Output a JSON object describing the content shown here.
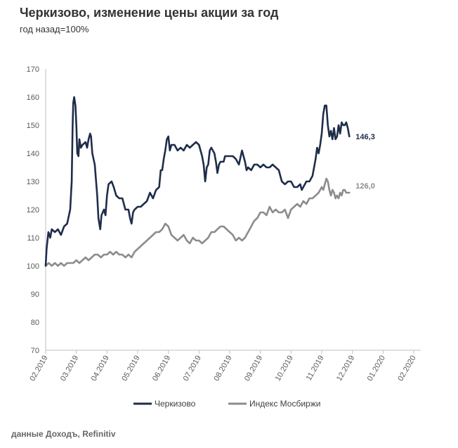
{
  "header": {
    "title": "Черкизово, изменение цены акции за год",
    "subtitle": "год назад=100%"
  },
  "footer": {
    "source": "данные Доходъ, Refinitiv"
  },
  "chart_data": {
    "type": "line",
    "ylim": [
      70,
      170
    ],
    "y_ticks": [
      70,
      80,
      90,
      100,
      110,
      120,
      130,
      140,
      150,
      160,
      170
    ],
    "x_range": [
      0,
      12
    ],
    "x_ticks": [
      {
        "x": 0,
        "label": "02.2019"
      },
      {
        "x": 1,
        "label": "03.2019"
      },
      {
        "x": 2,
        "label": "04.2019"
      },
      {
        "x": 3,
        "label": "05.2019"
      },
      {
        "x": 4,
        "label": "06.2019"
      },
      {
        "x": 5,
        "label": "07.2019"
      },
      {
        "x": 6,
        "label": "08.2019"
      },
      {
        "x": 7,
        "label": "09.2019"
      },
      {
        "x": 8,
        "label": "10.2019"
      },
      {
        "x": 9,
        "label": "11.2019"
      },
      {
        "x": 10,
        "label": "12.2019"
      },
      {
        "x": 11,
        "label": "01.2020"
      },
      {
        "x": 12,
        "label": "02.2020"
      }
    ],
    "grid": false,
    "legend_position": "bottom",
    "series": [
      {
        "name": "Черкизово",
        "color": "#1f2d4a",
        "end_label": "146,3",
        "points": [
          [
            0.0,
            100
          ],
          [
            0.03,
            106
          ],
          [
            0.09,
            112
          ],
          [
            0.15,
            110
          ],
          [
            0.2,
            113
          ],
          [
            0.3,
            112
          ],
          [
            0.4,
            113
          ],
          [
            0.5,
            111
          ],
          [
            0.6,
            114
          ],
          [
            0.7,
            115
          ],
          [
            0.8,
            120
          ],
          [
            0.85,
            130
          ],
          [
            0.88,
            150
          ],
          [
            0.9,
            158
          ],
          [
            0.93,
            160
          ],
          [
            0.97,
            157
          ],
          [
            1.0,
            150
          ],
          [
            1.03,
            140
          ],
          [
            1.07,
            139
          ],
          [
            1.1,
            145
          ],
          [
            1.15,
            142
          ],
          [
            1.2,
            143
          ],
          [
            1.3,
            144
          ],
          [
            1.35,
            142
          ],
          [
            1.4,
            145
          ],
          [
            1.45,
            147
          ],
          [
            1.48,
            146
          ],
          [
            1.52,
            140
          ],
          [
            1.6,
            136
          ],
          [
            1.68,
            125
          ],
          [
            1.72,
            117
          ],
          [
            1.78,
            113
          ],
          [
            1.82,
            118
          ],
          [
            1.9,
            120
          ],
          [
            1.95,
            118
          ],
          [
            2.0,
            125
          ],
          [
            2.05,
            129
          ],
          [
            2.15,
            130
          ],
          [
            2.22,
            128
          ],
          [
            2.3,
            125
          ],
          [
            2.4,
            124
          ],
          [
            2.5,
            124
          ],
          [
            2.6,
            120
          ],
          [
            2.7,
            120
          ],
          [
            2.75,
            117
          ],
          [
            2.8,
            115
          ],
          [
            2.85,
            119
          ],
          [
            2.9,
            120
          ],
          [
            3.0,
            121
          ],
          [
            3.1,
            121
          ],
          [
            3.2,
            122
          ],
          [
            3.3,
            123
          ],
          [
            3.4,
            126
          ],
          [
            3.5,
            124
          ],
          [
            3.6,
            127
          ],
          [
            3.7,
            128
          ],
          [
            3.75,
            134
          ],
          [
            3.8,
            134
          ],
          [
            3.85,
            138
          ],
          [
            3.9,
            141
          ],
          [
            3.95,
            145
          ],
          [
            4.0,
            146
          ],
          [
            4.05,
            141
          ],
          [
            4.1,
            143
          ],
          [
            4.2,
            143
          ],
          [
            4.3,
            141
          ],
          [
            4.4,
            142
          ],
          [
            4.5,
            141
          ],
          [
            4.6,
            143
          ],
          [
            4.7,
            142
          ],
          [
            4.8,
            143
          ],
          [
            4.9,
            144
          ],
          [
            5.0,
            143
          ],
          [
            5.05,
            141
          ],
          [
            5.1,
            139
          ],
          [
            5.15,
            136
          ],
          [
            5.2,
            130
          ],
          [
            5.25,
            135
          ],
          [
            5.3,
            136
          ],
          [
            5.35,
            141
          ],
          [
            5.4,
            142
          ],
          [
            5.5,
            140
          ],
          [
            5.55,
            137
          ],
          [
            5.6,
            133
          ],
          [
            5.65,
            136
          ],
          [
            5.7,
            137
          ],
          [
            5.8,
            137
          ],
          [
            5.85,
            139
          ],
          [
            5.9,
            139
          ],
          [
            6.0,
            139
          ],
          [
            6.1,
            139
          ],
          [
            6.2,
            138
          ],
          [
            6.3,
            136
          ],
          [
            6.4,
            141
          ],
          [
            6.5,
            137
          ],
          [
            6.55,
            134
          ],
          [
            6.6,
            135
          ],
          [
            6.7,
            134
          ],
          [
            6.8,
            136
          ],
          [
            6.9,
            136
          ],
          [
            7.0,
            135
          ],
          [
            7.1,
            136
          ],
          [
            7.2,
            135
          ],
          [
            7.3,
            135
          ],
          [
            7.4,
            136
          ],
          [
            7.5,
            135
          ],
          [
            7.6,
            134
          ],
          [
            7.7,
            130
          ],
          [
            7.8,
            129
          ],
          [
            7.9,
            130
          ],
          [
            8.0,
            130
          ],
          [
            8.1,
            128
          ],
          [
            8.2,
            128
          ],
          [
            8.3,
            129
          ],
          [
            8.35,
            127
          ],
          [
            8.4,
            128
          ],
          [
            8.5,
            130
          ],
          [
            8.6,
            130
          ],
          [
            8.7,
            132
          ],
          [
            8.8,
            138
          ],
          [
            8.85,
            142
          ],
          [
            8.9,
            140
          ],
          [
            8.95,
            143
          ],
          [
            9.0,
            147
          ],
          [
            9.05,
            154
          ],
          [
            9.1,
            157
          ],
          [
            9.15,
            157
          ],
          [
            9.2,
            150
          ],
          [
            9.25,
            146
          ],
          [
            9.3,
            148
          ],
          [
            9.35,
            145
          ],
          [
            9.4,
            149
          ],
          [
            9.45,
            145
          ],
          [
            9.5,
            146
          ],
          [
            9.55,
            150
          ],
          [
            9.6,
            147
          ],
          [
            9.65,
            151
          ],
          [
            9.7,
            150
          ],
          [
            9.75,
            150
          ],
          [
            9.8,
            151
          ],
          [
            9.85,
            149
          ],
          [
            9.9,
            146
          ]
        ]
      },
      {
        "name": "Индекс Мосбиржи",
        "color": "#8c8c8c",
        "end_label": "126,0",
        "points": [
          [
            0.0,
            100
          ],
          [
            0.1,
            101
          ],
          [
            0.2,
            100
          ],
          [
            0.3,
            101
          ],
          [
            0.4,
            100
          ],
          [
            0.5,
            101
          ],
          [
            0.6,
            100
          ],
          [
            0.7,
            101
          ],
          [
            0.8,
            101
          ],
          [
            0.9,
            101
          ],
          [
            1.0,
            102
          ],
          [
            1.1,
            101
          ],
          [
            1.2,
            102
          ],
          [
            1.3,
            103
          ],
          [
            1.4,
            102
          ],
          [
            1.5,
            103
          ],
          [
            1.6,
            104
          ],
          [
            1.7,
            104
          ],
          [
            1.8,
            103
          ],
          [
            1.9,
            104
          ],
          [
            2.0,
            104
          ],
          [
            2.1,
            105
          ],
          [
            2.2,
            104
          ],
          [
            2.3,
            105
          ],
          [
            2.4,
            104
          ],
          [
            2.5,
            104
          ],
          [
            2.6,
            103
          ],
          [
            2.7,
            104
          ],
          [
            2.8,
            103
          ],
          [
            2.9,
            105
          ],
          [
            3.0,
            106
          ],
          [
            3.1,
            107
          ],
          [
            3.2,
            108
          ],
          [
            3.3,
            109
          ],
          [
            3.4,
            110
          ],
          [
            3.5,
            111
          ],
          [
            3.6,
            112
          ],
          [
            3.7,
            112
          ],
          [
            3.8,
            113
          ],
          [
            3.9,
            115
          ],
          [
            4.0,
            114
          ],
          [
            4.1,
            111
          ],
          [
            4.2,
            110
          ],
          [
            4.3,
            109
          ],
          [
            4.4,
            110
          ],
          [
            4.5,
            111
          ],
          [
            4.6,
            109
          ],
          [
            4.7,
            108
          ],
          [
            4.8,
            110
          ],
          [
            4.9,
            109
          ],
          [
            5.0,
            109
          ],
          [
            5.1,
            108
          ],
          [
            5.2,
            109
          ],
          [
            5.3,
            110
          ],
          [
            5.4,
            112
          ],
          [
            5.5,
            112
          ],
          [
            5.6,
            113
          ],
          [
            5.7,
            114
          ],
          [
            5.8,
            114
          ],
          [
            5.9,
            113
          ],
          [
            6.0,
            112
          ],
          [
            6.1,
            111
          ],
          [
            6.2,
            109
          ],
          [
            6.3,
            110
          ],
          [
            6.4,
            109
          ],
          [
            6.5,
            110
          ],
          [
            6.6,
            112
          ],
          [
            6.7,
            114
          ],
          [
            6.8,
            116
          ],
          [
            6.9,
            117
          ],
          [
            7.0,
            119
          ],
          [
            7.1,
            119
          ],
          [
            7.2,
            118
          ],
          [
            7.3,
            121
          ],
          [
            7.4,
            119
          ],
          [
            7.5,
            120
          ],
          [
            7.6,
            119
          ],
          [
            7.7,
            119
          ],
          [
            7.8,
            120
          ],
          [
            7.9,
            117
          ],
          [
            8.0,
            120
          ],
          [
            8.1,
            121
          ],
          [
            8.2,
            122
          ],
          [
            8.3,
            121
          ],
          [
            8.4,
            123
          ],
          [
            8.5,
            122
          ],
          [
            8.6,
            124
          ],
          [
            8.7,
            124
          ],
          [
            8.8,
            125
          ],
          [
            8.9,
            126
          ],
          [
            9.0,
            128
          ],
          [
            9.05,
            127
          ],
          [
            9.1,
            129
          ],
          [
            9.15,
            131
          ],
          [
            9.2,
            130
          ],
          [
            9.25,
            127
          ],
          [
            9.3,
            125
          ],
          [
            9.35,
            127
          ],
          [
            9.4,
            126
          ],
          [
            9.45,
            124
          ],
          [
            9.5,
            125
          ],
          [
            9.55,
            124
          ],
          [
            9.6,
            126
          ],
          [
            9.65,
            125
          ],
          [
            9.7,
            127
          ],
          [
            9.75,
            127
          ],
          [
            9.8,
            126
          ],
          [
            9.85,
            126
          ],
          [
            9.9,
            126
          ]
        ]
      }
    ]
  }
}
